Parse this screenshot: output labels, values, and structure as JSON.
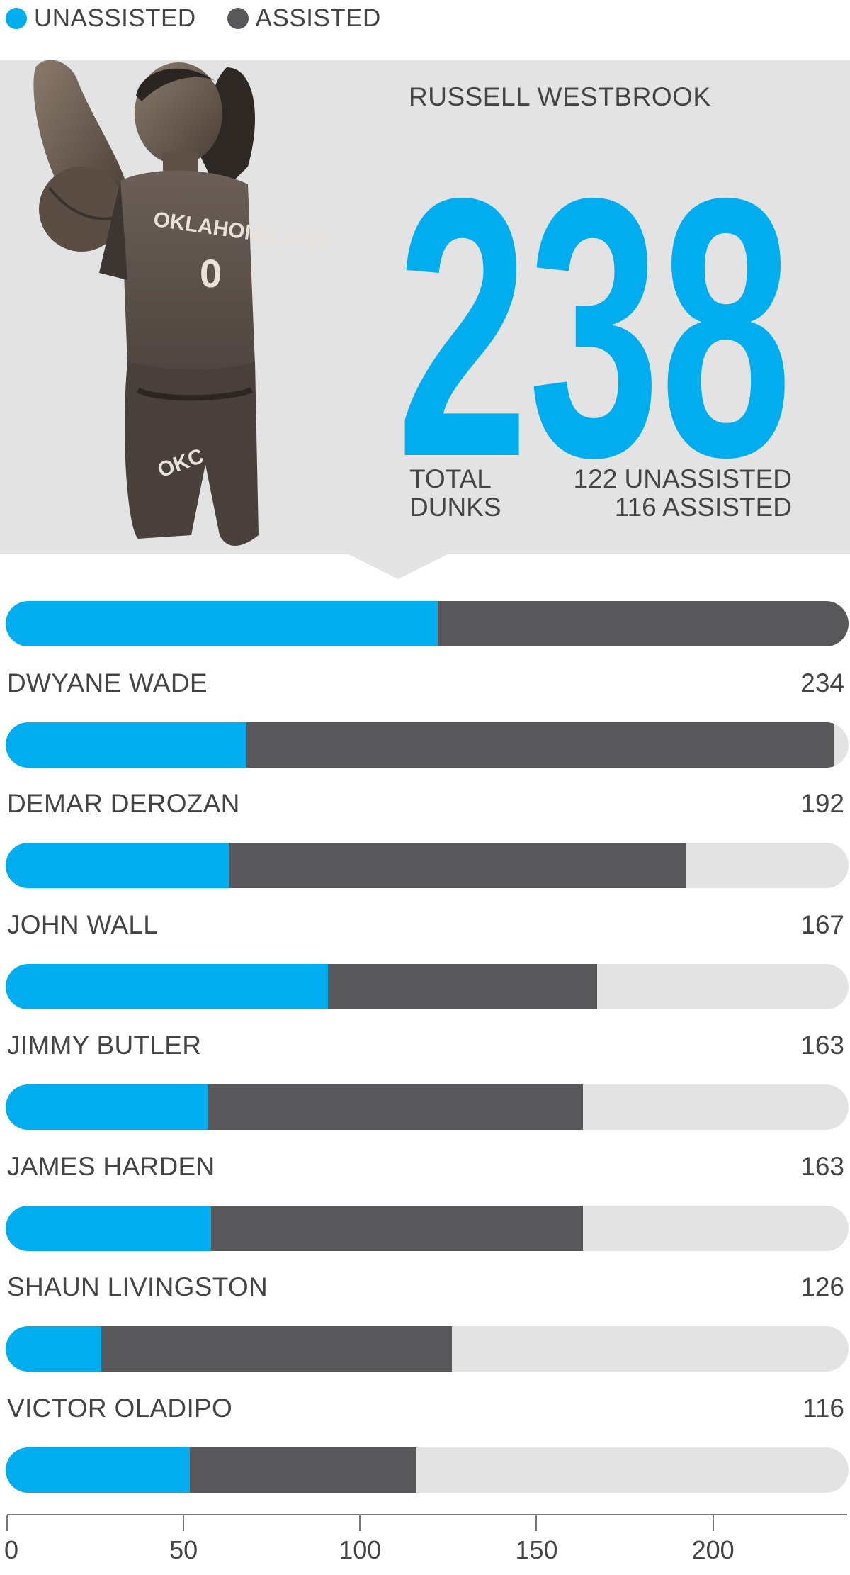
{
  "colors": {
    "unassisted": "#00aeef",
    "assisted": "#58585a",
    "track": "#e3e3e3"
  },
  "legend": [
    {
      "label": "UNASSISTED",
      "color": "#00aeef"
    },
    {
      "label": "ASSISTED",
      "color": "#58585a"
    }
  ],
  "hero": {
    "name": "RUSSELL WESTBROOK",
    "total": "238",
    "total_label": "TOTAL DUNKS",
    "unassisted_text": "122 UNASSISTED",
    "assisted_text": "116 ASSISTED",
    "jersey_text": "OKLAHOMA CITY",
    "jersey_number": "0",
    "logo_text": "OKC"
  },
  "chart_data": {
    "type": "bar",
    "stacked": true,
    "orientation": "horizontal",
    "xlim": [
      0,
      238
    ],
    "xticks": [
      0,
      50,
      100,
      150,
      200
    ],
    "legend_position": "top-left",
    "grid": false,
    "series_names": [
      "UNASSISTED",
      "ASSISTED"
    ],
    "rows": [
      {
        "name": "RUSSELL WESTBROOK",
        "total": 238,
        "unassisted": 122,
        "assisted": 116,
        "show_label": false
      },
      {
        "name": "DWYANE WADE",
        "total": 234,
        "unassisted": 68,
        "assisted": 166,
        "show_label": true
      },
      {
        "name": "DEMAR DEROZAN",
        "total": 192,
        "unassisted": 63,
        "assisted": 129,
        "show_label": true
      },
      {
        "name": "JOHN WALL",
        "total": 167,
        "unassisted": 91,
        "assisted": 76,
        "show_label": true
      },
      {
        "name": "JIMMY BUTLER",
        "total": 163,
        "unassisted": 57,
        "assisted": 106,
        "show_label": true
      },
      {
        "name": "JAMES HARDEN",
        "total": 163,
        "unassisted": 58,
        "assisted": 105,
        "show_label": true
      },
      {
        "name": "SHAUN LIVINGSTON",
        "total": 126,
        "unassisted": 27,
        "assisted": 99,
        "show_label": true
      },
      {
        "name": "VICTOR OLADIPO",
        "total": 116,
        "unassisted": 52,
        "assisted": 64,
        "show_label": true
      }
    ]
  }
}
